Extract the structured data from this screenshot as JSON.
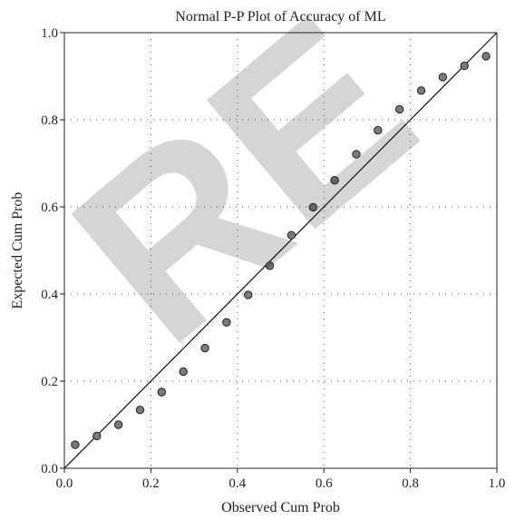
{
  "chart_data": {
    "type": "scatter",
    "title": "Normal P-P Plot of Accuracy of ML",
    "xlabel": "Observed Cum Prob",
    "ylabel": "Expected Cum Prob",
    "xlim": [
      0.0,
      1.0
    ],
    "ylim": [
      0.0,
      1.0
    ],
    "x_ticks": [
      "0.0",
      "0.2",
      "0.4",
      "0.6",
      "0.8",
      "1.0"
    ],
    "y_ticks": [
      "0.0",
      "0.2",
      "0.4",
      "0.6",
      "0.8",
      "1.0"
    ],
    "grid": "dotted",
    "reference_line": [
      [
        0.0,
        0.0
      ],
      [
        1.0,
        1.0
      ]
    ],
    "series": [
      {
        "x": [
          0.025,
          0.075,
          0.125,
          0.175,
          0.225,
          0.275,
          0.325,
          0.375,
          0.425,
          0.475,
          0.525,
          0.575,
          0.625,
          0.675,
          0.725,
          0.775,
          0.825,
          0.875,
          0.925,
          0.975
        ],
        "values": [
          0.054,
          0.074,
          0.1,
          0.134,
          0.175,
          0.222,
          0.276,
          0.335,
          0.398,
          0.465,
          0.535,
          0.599,
          0.661,
          0.721,
          0.776,
          0.824,
          0.867,
          0.898,
          0.924,
          0.946
        ]
      }
    ],
    "marker_color": "#7a7a7a",
    "marker_edge": "#222222",
    "line_color": "#111111",
    "watermark": "RE"
  }
}
